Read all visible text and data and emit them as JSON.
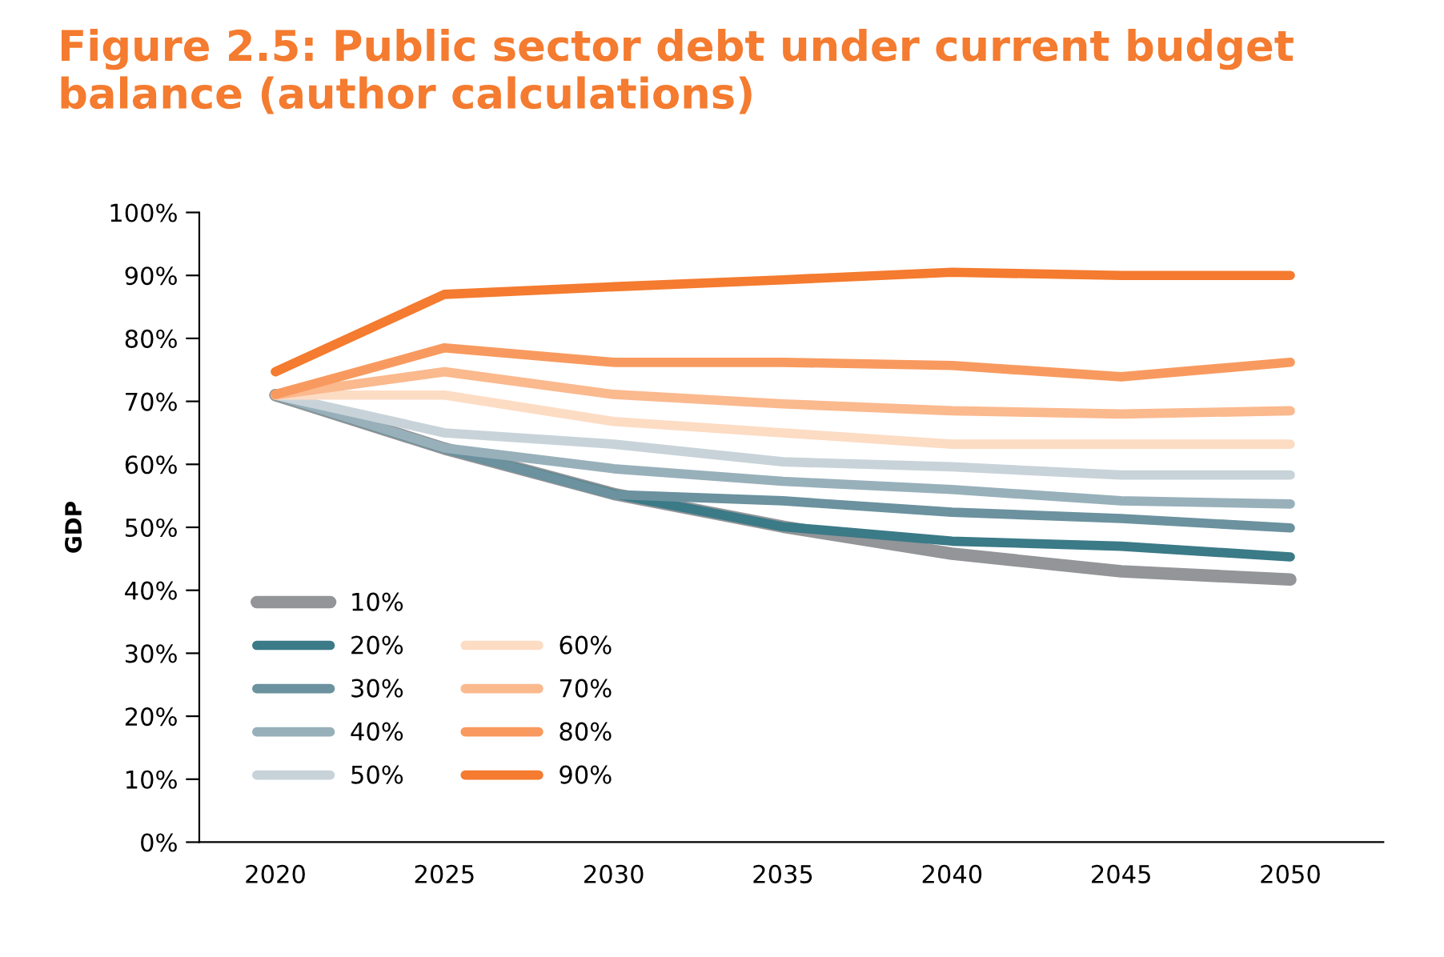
{
  "chart_data": {
    "type": "line",
    "title": "Figure 2.5: Public sector debt under current budget balance (author calculations)",
    "ylabel": "GDP",
    "categories": [
      "2020",
      "2025",
      "2030",
      "2035",
      "2040",
      "2045",
      "2050"
    ],
    "ylim": [
      0,
      1
    ],
    "yticks": [
      {
        "value": 0,
        "label": "0%"
      },
      {
        "value": 0.1,
        "label": "10%"
      },
      {
        "value": 0.2,
        "label": "20%"
      },
      {
        "value": 0.3,
        "label": "30%"
      },
      {
        "value": 0.4,
        "label": "40%"
      },
      {
        "value": 0.5,
        "label": "50%"
      },
      {
        "value": 0.6,
        "label": "60%"
      },
      {
        "value": 0.7,
        "label": "70%"
      },
      {
        "value": 0.8,
        "label": "80%"
      },
      {
        "value": 0.9,
        "label": "90%"
      },
      {
        "value": 1,
        "label": "100%"
      }
    ],
    "grid": false,
    "legend": "bottom left",
    "marker": "none",
    "line_style": "solid",
    "series": [
      {
        "name": "10%",
        "color": "#939598",
        "values": [
          0.71,
          0.625,
          0.553,
          0.501,
          0.458,
          0.43,
          0.417
        ]
      },
      {
        "name": "20%",
        "color": "#3b7a87",
        "values": [
          0.71,
          0.625,
          0.553,
          0.501,
          0.478,
          0.47,
          0.453
        ]
      },
      {
        "name": "30%",
        "color": "#6b929e",
        "values": [
          0.71,
          0.625,
          0.552,
          0.542,
          0.524,
          0.514,
          0.499
        ]
      },
      {
        "name": "40%",
        "color": "#98b0ba",
        "values": [
          0.71,
          0.626,
          0.593,
          0.573,
          0.56,
          0.542,
          0.537
        ]
      },
      {
        "name": "50%",
        "color": "#c8d3d9",
        "values": [
          0.71,
          0.65,
          0.632,
          0.604,
          0.596,
          0.583,
          0.583
        ]
      },
      {
        "name": "60%",
        "color": "#fddcc4",
        "values": [
          0.71,
          0.71,
          0.668,
          0.65,
          0.632,
          0.632,
          0.632
        ]
      },
      {
        "name": "70%",
        "color": "#fbb98e",
        "values": [
          0.71,
          0.747,
          0.711,
          0.696,
          0.685,
          0.68,
          0.685
        ]
      },
      {
        "name": "80%",
        "color": "#f89a5f",
        "values": [
          0.711,
          0.785,
          0.762,
          0.762,
          0.757,
          0.739,
          0.762
        ]
      },
      {
        "name": "90%",
        "color": "#f47b2f",
        "values": [
          0.747,
          0.87,
          0.882,
          0.893,
          0.905,
          0.9,
          0.9
        ]
      }
    ]
  }
}
